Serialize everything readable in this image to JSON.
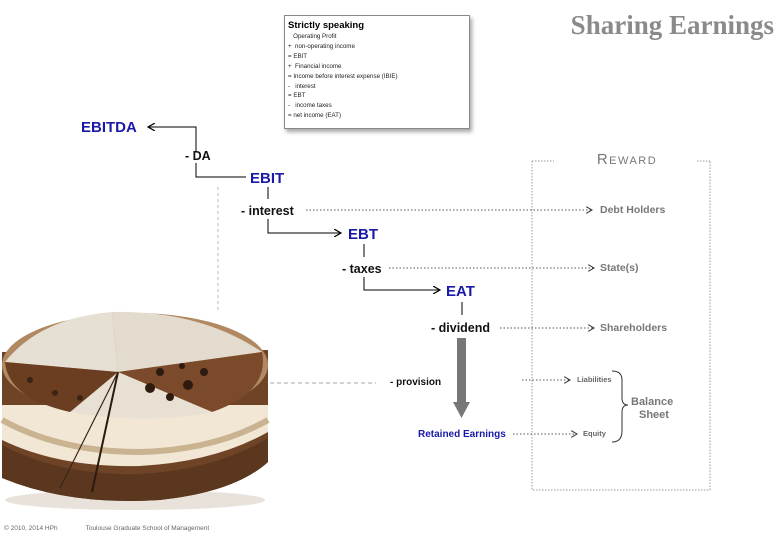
{
  "title": "Sharing Earnings",
  "definition_box": {
    "title": "Strictly speaking",
    "lines": [
      "   Operating Profit",
      "+  non-operating income",
      "= EBIT",
      "+  Financial income",
      "= Income before interest expense (IBIE)",
      "-   interest",
      "= EBT",
      "-   income taxes",
      "= net income (EAT)"
    ]
  },
  "flow": {
    "ebitda": "EBITDA",
    "da": "- DA",
    "ebit": "EBIT",
    "interest": "- interest",
    "ebt": "EBT",
    "taxes": "- taxes",
    "eat": "EAT",
    "dividend": "- dividend",
    "provision": "- provision",
    "retained": "Retained Earnings"
  },
  "reward": {
    "heading": "Reward",
    "debt_holders": "Debt Holders",
    "states": "State(s)",
    "shareholders": "Shareholders",
    "liabilities": "Liabilities",
    "equity": "Equity",
    "balance_sheet_line1": "Balance",
    "balance_sheet_line2": "Sheet"
  },
  "footer": {
    "copyright": "© 2010, 2014 HPh",
    "school": "Toulouse Graduate School of Management"
  },
  "colors": {
    "title": "#8a8a8a",
    "key_figures": "#1a1aa8",
    "reward_text": "#777777",
    "down_arrow": "#777777"
  }
}
